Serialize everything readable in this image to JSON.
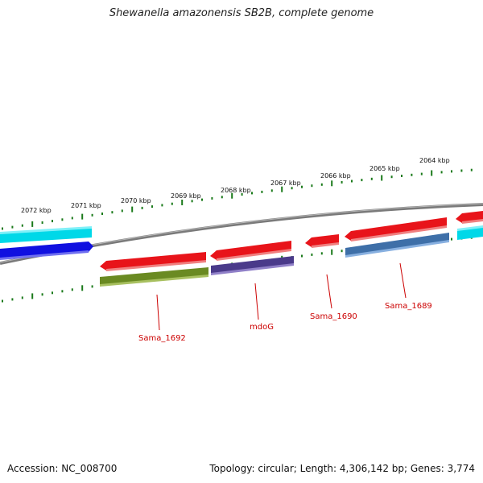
{
  "title": "Shewanella amazonensis SB2B, complete genome",
  "footer": {
    "accession": "Accession: NC_008700",
    "stats": "Topology: circular; Length: 4,306,142 bp; Genes: 3,774"
  },
  "scale": {
    "unit": "kbp",
    "ticks": [
      "2072 kbp",
      "2071 kbp",
      "2070 kbp",
      "2069 kbp",
      "2068 kbp",
      "2067 kbp",
      "2066 kbp",
      "2065 kbp",
      "2064 kbp"
    ]
  },
  "gene_labels": [
    {
      "text": "Sama_1692",
      "color": "#cc0000"
    },
    {
      "text": "mdoG",
      "color": "#cc0000"
    },
    {
      "text": "Sama_1690",
      "color": "#cc0000"
    },
    {
      "text": "Sama_1689",
      "color": "#cc0000"
    }
  ],
  "colors": {
    "tick_marks": "#1a7a1a",
    "backbone": "#7a7a7a",
    "gene_red": "#e8141a",
    "gene_cyan": "#00d8e8",
    "gene_blue": "#1010e0",
    "gene_olive": "#6a8a22",
    "gene_purple": "#4a3a8a",
    "gene_steel": "#3e6fa8"
  }
}
